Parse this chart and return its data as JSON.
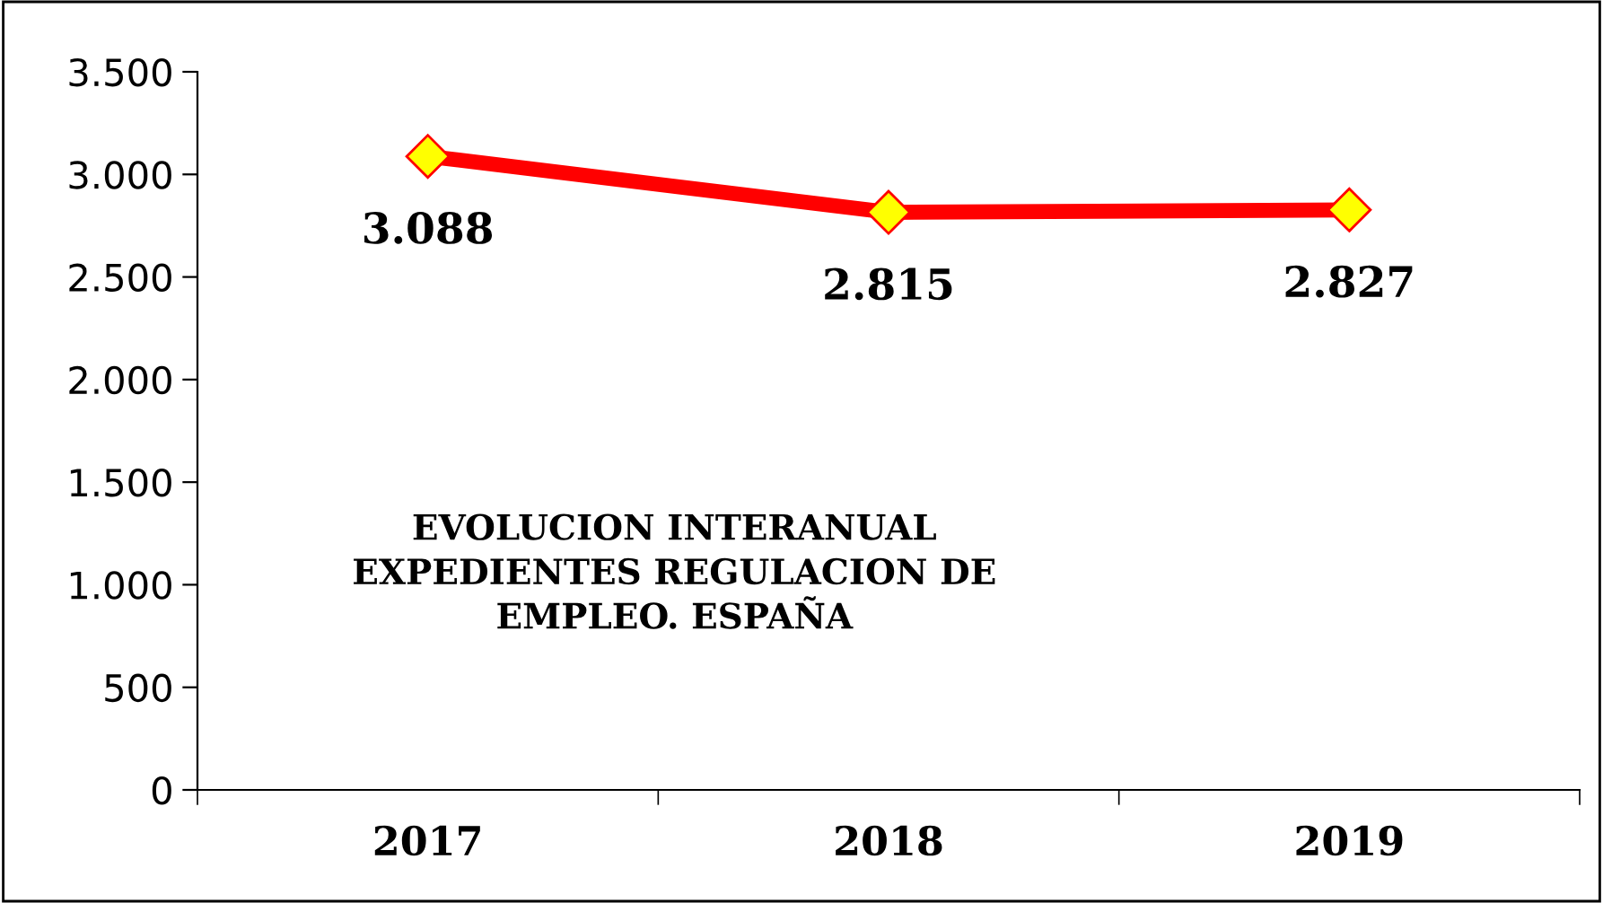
{
  "chart_data": {
    "type": "line",
    "title": "EVOLUCION INTERANUAL\nEXPEDIENTES REGULACION DE\nEMPLEO. ESPAÑA",
    "categories": [
      "2017",
      "2018",
      "2019"
    ],
    "series": [
      {
        "color": "#ff0000",
        "values": [
          3088,
          2815,
          2827
        ],
        "value_labels": [
          "3.088",
          "2.815",
          "2.827"
        ]
      }
    ],
    "ylim": [
      0,
      3500
    ],
    "yticks": [
      {
        "value": 0,
        "label": "0"
      },
      {
        "value": 500,
        "label": "500"
      },
      {
        "value": 1000,
        "label": "1.000"
      },
      {
        "value": 1500,
        "label": "1.500"
      },
      {
        "value": 2000,
        "label": "2.000"
      },
      {
        "value": 2500,
        "label": "2.500"
      },
      {
        "value": 3000,
        "label": "3.000"
      },
      {
        "value": 3500,
        "label": "3.500"
      }
    ],
    "grid": false,
    "legend": false,
    "marker": "diamond",
    "line_style": "solid"
  }
}
